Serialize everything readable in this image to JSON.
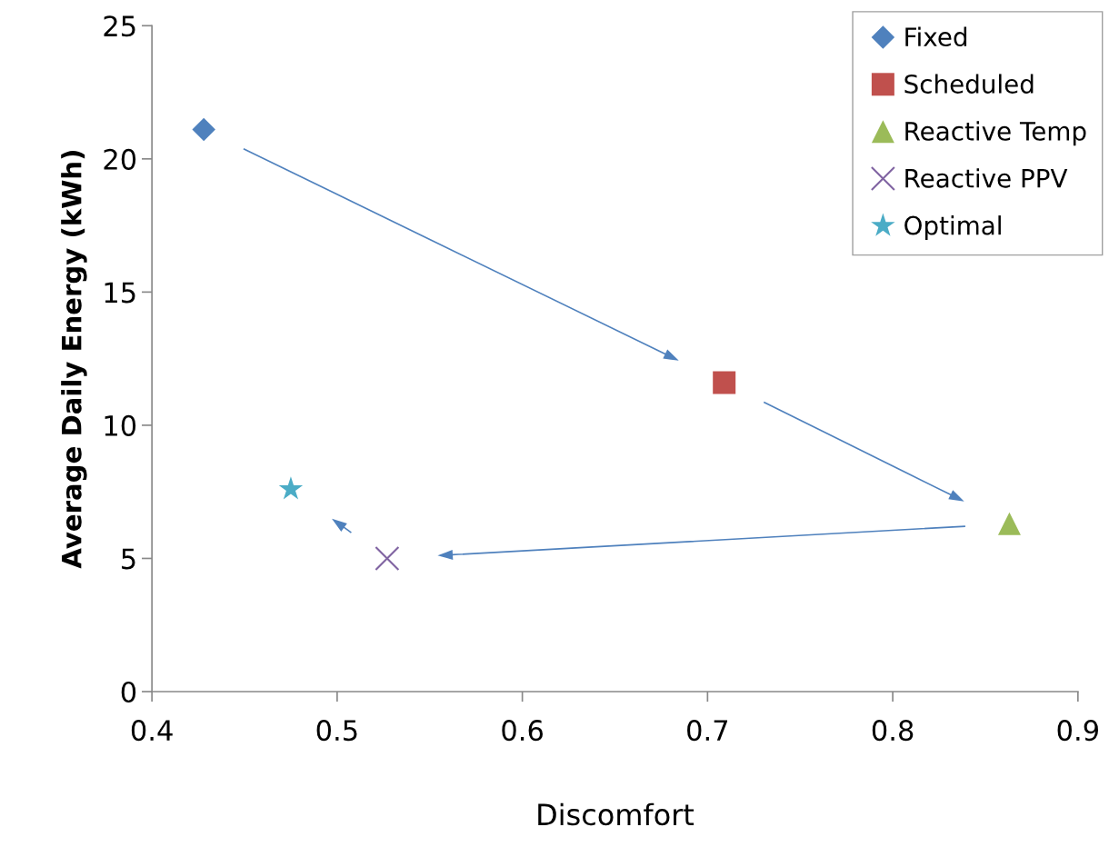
{
  "chart_data": {
    "type": "scatter",
    "xlabel": "Discomfort",
    "ylabel": "Average Daily Energy (kWh)",
    "xlim": [
      0.4,
      0.9
    ],
    "xticks": [
      {
        "value": 0.4,
        "label": "0.4"
      },
      {
        "value": 0.5,
        "label": "0.5"
      },
      {
        "value": 0.6,
        "label": "0.6"
      },
      {
        "value": 0.7,
        "label": "0.7"
      },
      {
        "value": 0.8,
        "label": "0.8"
      },
      {
        "value": 0.9,
        "label": "0.9"
      }
    ],
    "ylim": [
      0,
      25
    ],
    "yticks": [
      0,
      5,
      10,
      15,
      20,
      25
    ],
    "grid": false,
    "legend": "top right",
    "series": [
      {
        "name": "Fixed",
        "color": "#4f81bd",
        "marker": "diamond",
        "x": [
          0.428
        ],
        "values": [
          21.1
        ]
      },
      {
        "name": "Scheduled",
        "color": "#c0504d",
        "marker": "square",
        "x": [
          0.709
        ],
        "values": [
          11.6
        ]
      },
      {
        "name": "Reactive Temp",
        "color": "#9bbb59",
        "marker": "triangle",
        "x": [
          0.863
        ],
        "values": [
          6.3
        ]
      },
      {
        "name": "Reactive PPV",
        "color": "#8064a2",
        "marker": "cross",
        "x": [
          0.527
        ],
        "values": [
          5.0
        ]
      },
      {
        "name": "Optimal",
        "color": "#4bacc6",
        "marker": "star",
        "x": [
          0.475
        ],
        "values": [
          7.6
        ]
      }
    ]
  }
}
